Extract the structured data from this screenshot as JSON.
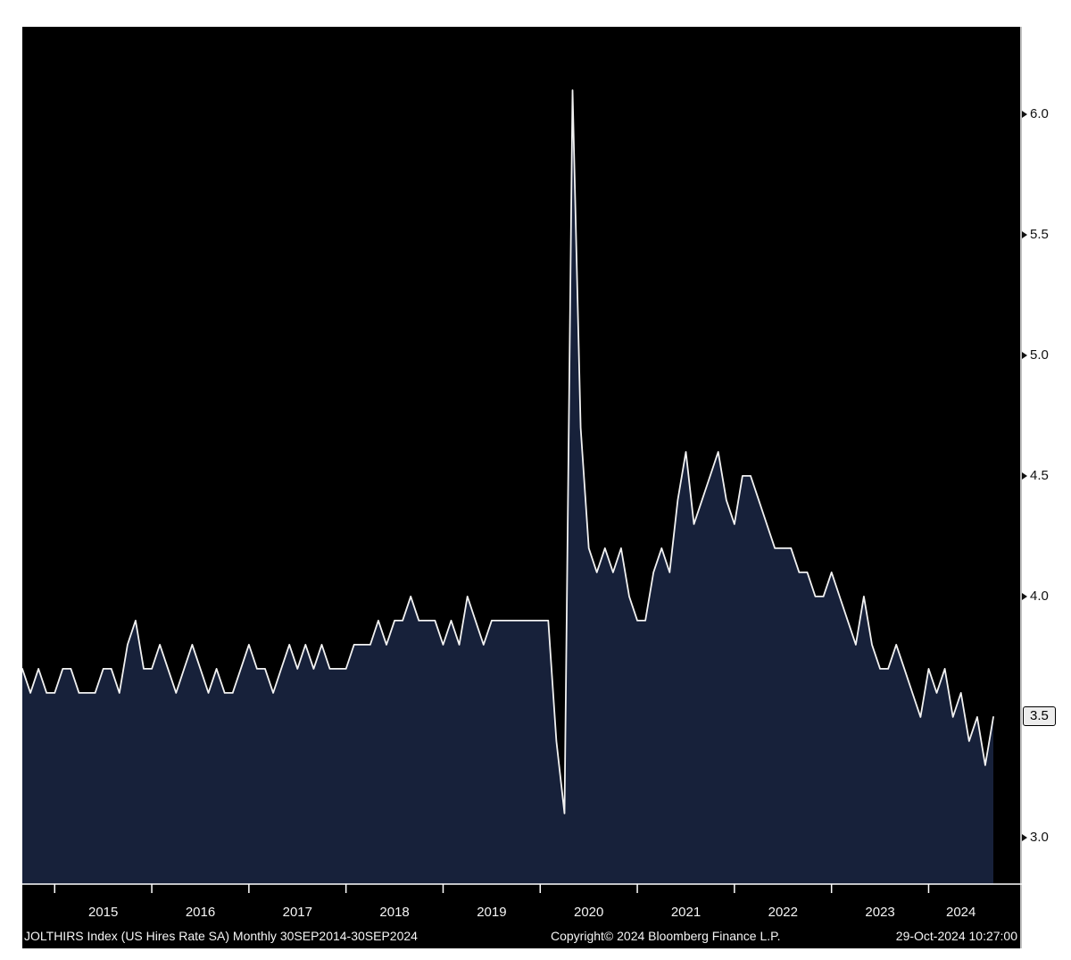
{
  "colors": {
    "page_background": "#ffffff",
    "panel_background": "#000000",
    "area_fill": "#17213a",
    "line": "#f2f2f2",
    "axis": "#ffffff",
    "axis_label_dark": "#111111",
    "axis_label_light": "#f5f5f5",
    "last_price_box_bg": "#ededed",
    "last_price_box_border": "#000000"
  },
  "chart_data": {
    "type": "area",
    "title": "JOLTHIRS Index (US Hires Rate SA)",
    "frequency": "Monthly",
    "period_start": "30SEP2014",
    "period_end": "30SEP2024",
    "x_unit": "month",
    "x_start": "2014-09",
    "x_end": "2024-09",
    "values": [
      3.7,
      3.6,
      3.7,
      3.6,
      3.6,
      3.7,
      3.7,
      3.6,
      3.6,
      3.6,
      3.7,
      3.7,
      3.6,
      3.8,
      3.9,
      3.7,
      3.7,
      3.8,
      3.7,
      3.6,
      3.7,
      3.8,
      3.7,
      3.6,
      3.7,
      3.6,
      3.6,
      3.7,
      3.8,
      3.7,
      3.7,
      3.6,
      3.7,
      3.8,
      3.7,
      3.8,
      3.7,
      3.8,
      3.7,
      3.7,
      3.7,
      3.8,
      3.8,
      3.8,
      3.9,
      3.8,
      3.9,
      3.9,
      4.0,
      3.9,
      3.9,
      3.9,
      3.8,
      3.9,
      3.8,
      4.0,
      3.9,
      3.8,
      3.9,
      3.9,
      3.9,
      3.9,
      3.9,
      3.9,
      3.9,
      3.9,
      3.4,
      3.1,
      6.1,
      4.7,
      4.2,
      4.1,
      4.2,
      4.1,
      4.2,
      4.0,
      3.9,
      3.9,
      4.1,
      4.2,
      4.1,
      4.4,
      4.6,
      4.3,
      4.4,
      4.5,
      4.6,
      4.4,
      4.3,
      4.5,
      4.5,
      4.4,
      4.3,
      4.2,
      4.2,
      4.2,
      4.1,
      4.1,
      4.0,
      4.0,
      4.1,
      4.0,
      3.9,
      3.8,
      4.0,
      3.8,
      3.7,
      3.7,
      3.8,
      3.7,
      3.6,
      3.5,
      3.7,
      3.6,
      3.7,
      3.5,
      3.6,
      3.4,
      3.5,
      3.3,
      3.5
    ],
    "y_ticks": [
      3.0,
      3.5,
      4.0,
      4.5,
      5.0,
      5.5,
      6.0
    ],
    "ylim": [
      2.807,
      6.363
    ],
    "x_year_labels": [
      "2015",
      "2016",
      "2017",
      "2018",
      "2019",
      "2020",
      "2021",
      "2022",
      "2023",
      "2024"
    ],
    "last_value": 3.5,
    "last_value_label": "3.5",
    "grid": false,
    "legend": "none",
    "y_axis_side": "right"
  },
  "footer": {
    "left": "JOLTHIRS Index (US Hires Rate SA)  Monthly 30SEP2014-30SEP2024",
    "copyright": "Copyright© 2024 Bloomberg Finance L.P.",
    "timestamp": "29-Oct-2024 10:27:00"
  }
}
